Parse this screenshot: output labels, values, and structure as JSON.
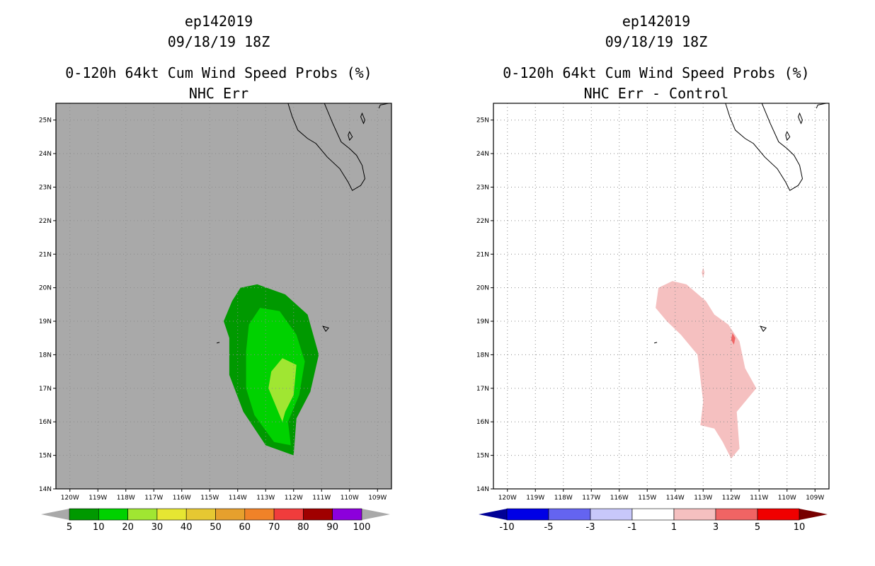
{
  "chart_data": [
    {
      "type": "heatmap",
      "id": "left",
      "title_lines": [
        "ep142019",
        "09/18/19 18Z",
        "0-120h 64kt Cum Wind Speed Probs (%)",
        "NHC Err"
      ],
      "x_ticks": [
        "120W",
        "119W",
        "118W",
        "117W",
        "116W",
        "115W",
        "114W",
        "113W",
        "112W",
        "111W",
        "110W",
        "109W"
      ],
      "y_ticks": [
        "14N",
        "15N",
        "16N",
        "17N",
        "18N",
        "19N",
        "20N",
        "21N",
        "22N",
        "23N",
        "24N",
        "25N"
      ],
      "xlim": [
        -120.5,
        -108.5
      ],
      "ylim": [
        14,
        25.5
      ],
      "background": "#a9a9a9",
      "grid": true,
      "colorbar": {
        "labels": [
          "5",
          "10",
          "20",
          "30",
          "40",
          "50",
          "60",
          "70",
          "80",
          "90",
          "100"
        ],
        "colors": [
          "#009900",
          "#00d200",
          "#a0e632",
          "#e6e632",
          "#e6c832",
          "#e6a02d",
          "#f08228",
          "#f03c3c",
          "#a00000",
          "#8c00dc"
        ],
        "end_colors": [
          "#a9a9a9",
          "#a9a9a9"
        ]
      },
      "contours": [
        {
          "level": "5-10",
          "color": "#009900",
          "points": [
            [
              -113.9,
              20.0
            ],
            [
              -113.3,
              20.1
            ],
            [
              -112.3,
              19.8
            ],
            [
              -111.5,
              19.2
            ],
            [
              -111.1,
              18.0
            ],
            [
              -111.4,
              16.9
            ],
            [
              -111.9,
              16.1
            ],
            [
              -112.0,
              15.0
            ],
            [
              -113.0,
              15.3
            ],
            [
              -113.8,
              16.3
            ],
            [
              -114.3,
              17.4
            ],
            [
              -114.3,
              18.5
            ],
            [
              -114.5,
              19.0
            ],
            [
              -114.2,
              19.6
            ]
          ]
        },
        {
          "level": "10-20",
          "color": "#00d200",
          "points": [
            [
              -113.2,
              19.4
            ],
            [
              -112.5,
              19.3
            ],
            [
              -111.9,
              18.6
            ],
            [
              -111.6,
              17.8
            ],
            [
              -111.8,
              16.8
            ],
            [
              -112.2,
              16.0
            ],
            [
              -112.1,
              15.3
            ],
            [
              -112.7,
              15.4
            ],
            [
              -113.4,
              16.2
            ],
            [
              -113.7,
              17.0
            ],
            [
              -113.7,
              18.1
            ],
            [
              -113.6,
              18.9
            ]
          ]
        },
        {
          "level": "20-30",
          "color": "#a0e632",
          "points": [
            [
              -112.4,
              17.9
            ],
            [
              -111.9,
              17.7
            ],
            [
              -112.0,
              16.8
            ],
            [
              -112.3,
              16.3
            ],
            [
              -112.4,
              16.0
            ],
            [
              -112.7,
              16.6
            ],
            [
              -112.9,
              17.0
            ],
            [
              -112.8,
              17.5
            ]
          ]
        }
      ]
    },
    {
      "type": "heatmap",
      "id": "right",
      "title_lines": [
        "ep142019",
        "09/18/19 18Z",
        "0-120h 64kt Cum Wind Speed Probs (%)",
        "NHC Err - Control"
      ],
      "x_ticks": [
        "120W",
        "119W",
        "118W",
        "117W",
        "116W",
        "115W",
        "114W",
        "113W",
        "112W",
        "111W",
        "110W",
        "109W"
      ],
      "y_ticks": [
        "14N",
        "15N",
        "16N",
        "17N",
        "18N",
        "19N",
        "20N",
        "21N",
        "22N",
        "23N",
        "24N",
        "25N"
      ],
      "xlim": [
        -120.5,
        -108.5
      ],
      "ylim": [
        14,
        25.5
      ],
      "background": "#ffffff",
      "grid": true,
      "colorbar": {
        "labels": [
          "-10",
          "-5",
          "-3",
          "-1",
          "1",
          "3",
          "5",
          "10"
        ],
        "colors": [
          "#0000e6",
          "#6464f0",
          "#c8c8fa",
          "#ffffff",
          "#f5c0c0",
          "#f06464",
          "#f00000"
        ],
        "end_colors": [
          "#000096",
          "#780000"
        ]
      },
      "contours": [
        {
          "level": "1-3",
          "color": "#f5c0c0",
          "points": [
            [
              -114.6,
              20.0
            ],
            [
              -114.1,
              20.2
            ],
            [
              -113.6,
              20.1
            ],
            [
              -112.9,
              19.6
            ],
            [
              -112.6,
              19.2
            ],
            [
              -112.1,
              18.9
            ],
            [
              -111.7,
              18.4
            ],
            [
              -111.5,
              17.6
            ],
            [
              -111.1,
              17.0
            ],
            [
              -111.8,
              16.3
            ],
            [
              -111.7,
              15.2
            ],
            [
              -112.0,
              14.9
            ],
            [
              -112.3,
              15.4
            ],
            [
              -112.6,
              15.8
            ],
            [
              -113.1,
              15.9
            ],
            [
              -113.0,
              16.6
            ],
            [
              -113.1,
              17.3
            ],
            [
              -113.2,
              18.0
            ],
            [
              -113.8,
              18.6
            ],
            [
              -114.3,
              19.0
            ],
            [
              -114.7,
              19.4
            ]
          ]
        },
        {
          "level": "1-3",
          "color": "#f5c0c0",
          "points": [
            [
              -113.0,
              20.6
            ],
            [
              -112.95,
              20.45
            ],
            [
              -113.0,
              20.3
            ],
            [
              -113.05,
              20.45
            ]
          ]
        },
        {
          "level": "3-5",
          "color": "#f06464",
          "points": [
            [
              -111.95,
              18.65
            ],
            [
              -111.85,
              18.5
            ],
            [
              -111.9,
              18.3
            ],
            [
              -112.0,
              18.45
            ]
          ]
        }
      ]
    }
  ]
}
